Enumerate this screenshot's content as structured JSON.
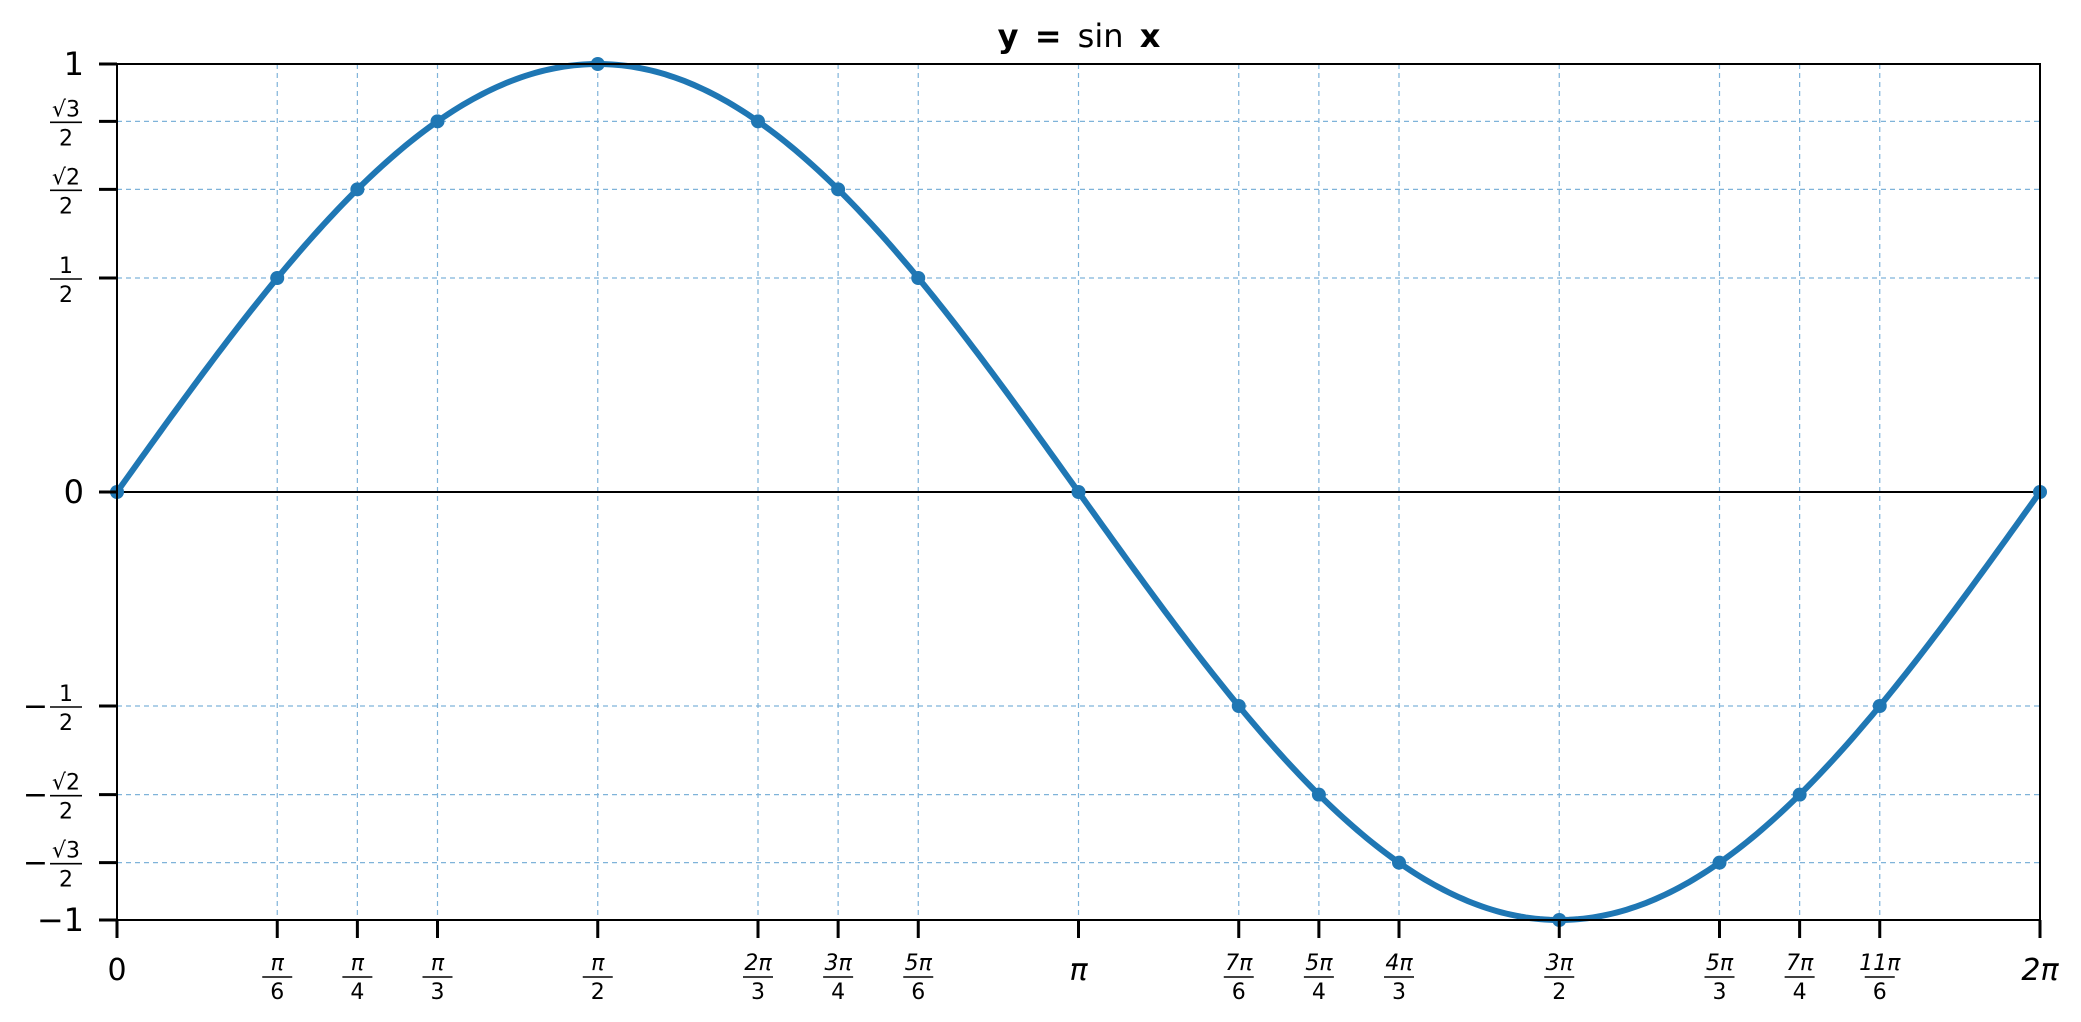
{
  "chart_data": {
    "type": "line",
    "title": "y = sin x",
    "title_parts": {
      "var_y": "y",
      "equals": "=",
      "func": "sin",
      "var_x": "x"
    },
    "xlabel": "",
    "ylabel": "",
    "xlim": [
      0,
      6.283185307179586
    ],
    "ylim": [
      -1,
      1
    ],
    "grid": true,
    "legend": "none",
    "colors": {
      "line": "#1f77b4",
      "grid": "#7fb3d9",
      "axis": "#000000",
      "zero_line": "#000000"
    },
    "series": [
      {
        "function": "sin",
        "x_range": [
          0,
          6.283185307179586
        ],
        "samples": 400
      }
    ],
    "points": [
      {
        "x": 0,
        "y": 0
      },
      {
        "x": 0.5236,
        "y": 0.5
      },
      {
        "x": 0.7854,
        "y": 0.7071
      },
      {
        "x": 1.0472,
        "y": 0.866
      },
      {
        "x": 1.5708,
        "y": 1
      },
      {
        "x": 2.0944,
        "y": 0.866
      },
      {
        "x": 2.3562,
        "y": 0.7071
      },
      {
        "x": 2.618,
        "y": 0.5
      },
      {
        "x": 3.1416,
        "y": 0
      },
      {
        "x": 3.6652,
        "y": -0.5
      },
      {
        "x": 3.927,
        "y": -0.7071
      },
      {
        "x": 4.1888,
        "y": -0.866
      },
      {
        "x": 4.7124,
        "y": -1
      },
      {
        "x": 5.236,
        "y": -0.866
      },
      {
        "x": 5.4978,
        "y": -0.7071
      },
      {
        "x": 5.7596,
        "y": -0.5
      },
      {
        "x": 6.2832,
        "y": 0
      }
    ],
    "x_ticks": [
      {
        "value": 0,
        "label": "0"
      },
      {
        "value": 0.5236,
        "num": "π",
        "den": "6"
      },
      {
        "value": 0.7854,
        "num": "π",
        "den": "4"
      },
      {
        "value": 1.0472,
        "num": "π",
        "den": "3"
      },
      {
        "value": 1.5708,
        "num": "π",
        "den": "2"
      },
      {
        "value": 2.0944,
        "num": "2π",
        "den": "3"
      },
      {
        "value": 2.3562,
        "num": "3π",
        "den": "4"
      },
      {
        "value": 2.618,
        "num": "5π",
        "den": "6"
      },
      {
        "value": 3.1416,
        "label": "π"
      },
      {
        "value": 3.6652,
        "num": "7π",
        "den": "6"
      },
      {
        "value": 3.927,
        "num": "5π",
        "den": "4"
      },
      {
        "value": 4.1888,
        "num": "4π",
        "den": "3"
      },
      {
        "value": 4.7124,
        "num": "3π",
        "den": "2"
      },
      {
        "value": 5.236,
        "num": "5π",
        "den": "3"
      },
      {
        "value": 5.4978,
        "num": "7π",
        "den": "4"
      },
      {
        "value": 5.7596,
        "num": "11π",
        "den": "6"
      },
      {
        "value": 6.2832,
        "label": "2π"
      }
    ],
    "y_ticks": [
      {
        "value": 1,
        "label": "1"
      },
      {
        "value": 0.866,
        "num": "√3",
        "den": "2"
      },
      {
        "value": 0.7071,
        "num": "√2",
        "den": "2"
      },
      {
        "value": 0.5,
        "num": "1",
        "den": "2"
      },
      {
        "value": 0,
        "label": "0"
      },
      {
        "value": -0.5,
        "sign": "−",
        "num": "1",
        "den": "2"
      },
      {
        "value": -0.7071,
        "sign": "−",
        "num": "√2",
        "den": "2"
      },
      {
        "value": -0.866,
        "sign": "−",
        "num": "√3",
        "den": "2"
      },
      {
        "value": -1,
        "label": "−1"
      }
    ]
  }
}
